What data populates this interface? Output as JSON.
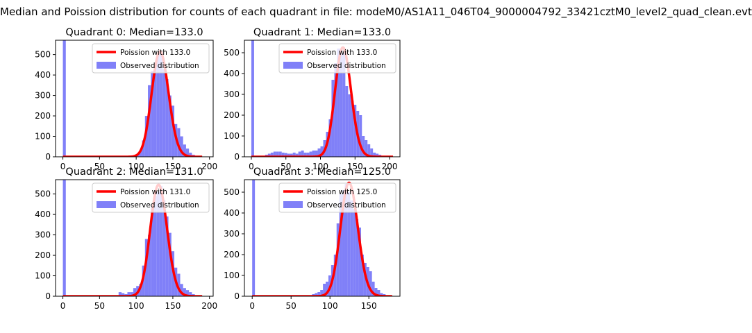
{
  "figure": {
    "suptitle": "Median and Poission distribution for counts of each quadrant in file: modeM0/AS1A11_046T04_9000004792_33421cztM0_level2_quad_clean.evt"
  },
  "colors": {
    "fit": "#ff0000",
    "observed": "#8080f8",
    "axis": "#000000"
  },
  "chart_data": [
    {
      "type": "bar",
      "title": "Quadrant 0: Median=133.0",
      "legend": [
        "Poission with 133.0",
        "Observed distribution"
      ],
      "legend_position": "upper right",
      "grid": false,
      "xlim": [
        -10,
        205
      ],
      "ylim": [
        0,
        570
      ],
      "xticks": [
        0,
        50,
        100,
        150,
        200
      ],
      "yticks": [
        0,
        100,
        200,
        300,
        400,
        500
      ],
      "bin_edges": [
        0,
        4,
        8,
        12,
        16,
        20,
        24,
        28,
        32,
        36,
        40,
        44,
        48,
        52,
        56,
        60,
        64,
        68,
        72,
        76,
        80,
        84,
        88,
        92,
        96,
        100,
        104,
        108,
        112,
        116,
        120,
        124,
        128,
        132,
        136,
        140,
        144,
        148,
        152,
        156,
        160,
        164,
        168,
        172,
        176,
        180,
        184,
        188,
        192
      ],
      "observed": [
        570,
        0,
        0,
        0,
        0,
        0,
        0,
        0,
        0,
        0,
        0,
        0,
        0,
        0,
        0,
        0,
        0,
        0,
        0,
        0,
        0,
        0,
        0,
        2,
        5,
        10,
        30,
        80,
        200,
        350,
        420,
        460,
        500,
        510,
        430,
        380,
        300,
        250,
        160,
        140,
        100,
        60,
        40,
        20,
        10,
        5,
        3,
        1
      ],
      "poisson_mean": 133.0,
      "poisson_peak": 515,
      "fit_x_range": [
        0,
        190
      ]
    },
    {
      "type": "bar",
      "title": "Quadrant 1: Median=133.0",
      "legend": [
        "Poission with 133.0",
        "Observed distribution"
      ],
      "legend_position": "upper right",
      "grid": false,
      "xlim": [
        -10,
        215
      ],
      "ylim": [
        0,
        560
      ],
      "xticks": [
        0,
        50,
        100,
        150,
        200
      ],
      "yticks": [
        0,
        100,
        200,
        300,
        400,
        500
      ],
      "bin_edges": [
        0,
        4,
        8,
        12,
        16,
        20,
        24,
        28,
        32,
        36,
        40,
        44,
        48,
        52,
        56,
        60,
        64,
        68,
        72,
        76,
        80,
        84,
        88,
        92,
        96,
        100,
        104,
        108,
        112,
        116,
        120,
        124,
        128,
        132,
        136,
        140,
        144,
        148,
        152,
        156,
        160,
        164,
        168,
        172,
        176,
        180,
        184,
        188,
        192,
        196,
        200,
        204
      ],
      "observed": [
        560,
        0,
        0,
        0,
        5,
        10,
        15,
        20,
        25,
        25,
        25,
        20,
        18,
        15,
        15,
        20,
        15,
        25,
        30,
        20,
        20,
        25,
        30,
        30,
        40,
        50,
        80,
        120,
        180,
        370,
        450,
        520,
        520,
        500,
        340,
        300,
        270,
        250,
        220,
        200,
        100,
        80,
        60,
        40,
        20,
        15,
        10,
        5,
        3,
        2,
        1
      ],
      "poisson_mean": 133.0,
      "poisson_peak": 525,
      "fit_x_range": [
        0,
        205
      ]
    },
    {
      "type": "bar",
      "title": "Quadrant 2: Median=131.0",
      "legend": [
        "Poission with 131.0",
        "Observed distribution"
      ],
      "legend_position": "upper right",
      "grid": false,
      "xlim": [
        -10,
        205
      ],
      "ylim": [
        0,
        570
      ],
      "xticks": [
        0,
        50,
        100,
        150,
        200
      ],
      "yticks": [
        0,
        100,
        200,
        300,
        400,
        500
      ],
      "bin_edges": [
        0,
        4,
        8,
        12,
        16,
        20,
        24,
        28,
        32,
        36,
        40,
        44,
        48,
        52,
        56,
        60,
        64,
        68,
        72,
        76,
        80,
        84,
        88,
        92,
        96,
        100,
        104,
        108,
        112,
        116,
        120,
        124,
        128,
        132,
        136,
        140,
        144,
        148,
        152,
        156,
        160,
        164,
        168,
        172,
        176,
        180,
        184,
        188,
        192
      ],
      "observed": [
        570,
        0,
        0,
        0,
        0,
        0,
        0,
        0,
        0,
        0,
        0,
        0,
        0,
        0,
        0,
        0,
        0,
        0,
        0,
        20,
        15,
        10,
        20,
        20,
        40,
        50,
        60,
        150,
        280,
        300,
        440,
        490,
        510,
        540,
        470,
        390,
        310,
        220,
        140,
        110,
        60,
        40,
        30,
        20,
        10,
        5,
        3,
        1
      ],
      "poisson_mean": 131.0,
      "poisson_peak": 545,
      "fit_x_range": [
        0,
        190
      ]
    },
    {
      "type": "bar",
      "title": "Quadrant 3: Median=125.0",
      "legend": [
        "Poission with 125.0",
        "Observed distribution"
      ],
      "legend_position": "upper right",
      "grid": false,
      "xlim": [
        -10,
        190
      ],
      "ylim": [
        0,
        560
      ],
      "xticks": [
        0,
        50,
        100,
        150
      ],
      "yticks": [
        0,
        100,
        200,
        300,
        400,
        500
      ],
      "bin_edges": [
        0,
        3.5,
        7,
        10.5,
        14,
        17.5,
        21,
        24.5,
        28,
        31.5,
        35,
        38.5,
        42,
        45.5,
        49,
        52.5,
        56,
        59.5,
        63,
        66.5,
        70,
        73.5,
        77,
        80.5,
        84,
        87.5,
        91,
        94.5,
        98,
        101.5,
        105,
        108.5,
        112,
        115.5,
        119,
        122.5,
        126,
        129.5,
        133,
        136.5,
        140,
        143.5,
        147,
        150.5,
        154,
        157.5,
        161,
        164.5,
        168,
        171.5,
        175,
        178.5
      ],
      "observed": [
        560,
        0,
        0,
        0,
        0,
        0,
        0,
        0,
        0,
        0,
        0,
        0,
        0,
        0,
        0,
        0,
        0,
        0,
        0,
        0,
        0,
        0,
        10,
        15,
        20,
        30,
        60,
        70,
        100,
        150,
        200,
        350,
        490,
        510,
        540,
        500,
        460,
        420,
        370,
        330,
        200,
        160,
        140,
        120,
        70,
        40,
        30,
        15,
        10,
        5,
        2
      ],
      "poisson_mean": 125.0,
      "poisson_peak": 545,
      "fit_x_range": [
        0,
        180
      ]
    }
  ]
}
